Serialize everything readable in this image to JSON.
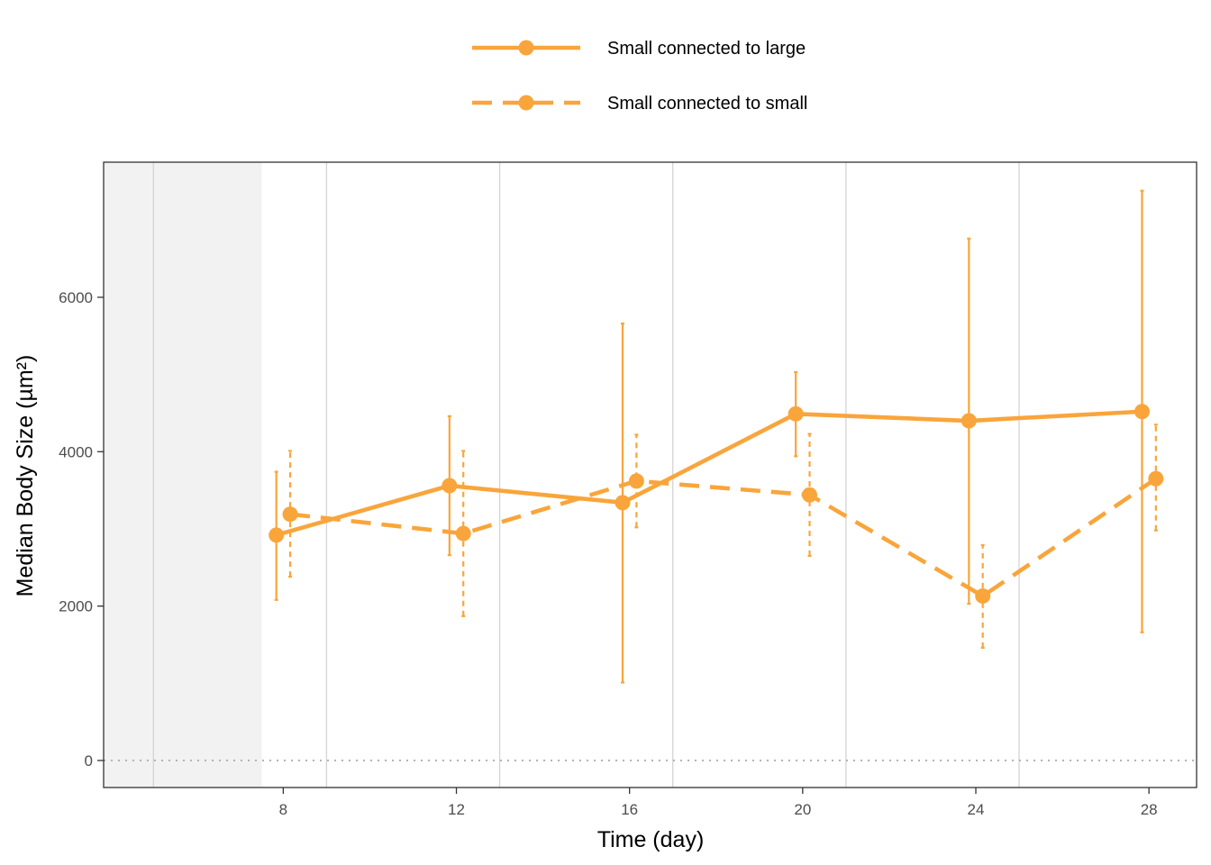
{
  "chart_data": {
    "type": "line",
    "xlabel": "Time (day)",
    "ylabel": "Median Body Size (µm²)",
    "x_ticks": [
      8,
      12,
      16,
      20,
      24,
      28
    ],
    "y_ticks": [
      0,
      2000,
      4000,
      6000
    ],
    "xlim": [
      3.85,
      29.1
    ],
    "ylim": [
      -350,
      7750
    ],
    "shaded_region_x": [
      3.85,
      7.5
    ],
    "vertical_gridlines_x": [
      5,
      9,
      13,
      17,
      21,
      25
    ],
    "zero_reference_line": true,
    "legend_position": "top-center",
    "color": "#F9A53B",
    "series": [
      {
        "name": "Small connected to large",
        "line_style": "solid",
        "x": [
          8,
          12,
          16,
          20,
          24,
          28
        ],
        "y": [
          2920,
          3560,
          3340,
          4490,
          4400,
          4520
        ],
        "err_low": [
          2080,
          2660,
          1010,
          3940,
          2030,
          1660
        ],
        "err_high": [
          3740,
          4460,
          5660,
          5030,
          6760,
          7380
        ]
      },
      {
        "name": "Small connected to small",
        "line_style": "dashed",
        "x": [
          8,
          12,
          16,
          20,
          24,
          28
        ],
        "y": [
          3190,
          2940,
          3620,
          3440,
          2130,
          3650
        ],
        "err_low": [
          2380,
          1870,
          3020,
          2650,
          1460,
          2980
        ],
        "err_high": [
          4010,
          4010,
          4220,
          4230,
          2790,
          4350
        ]
      }
    ]
  }
}
